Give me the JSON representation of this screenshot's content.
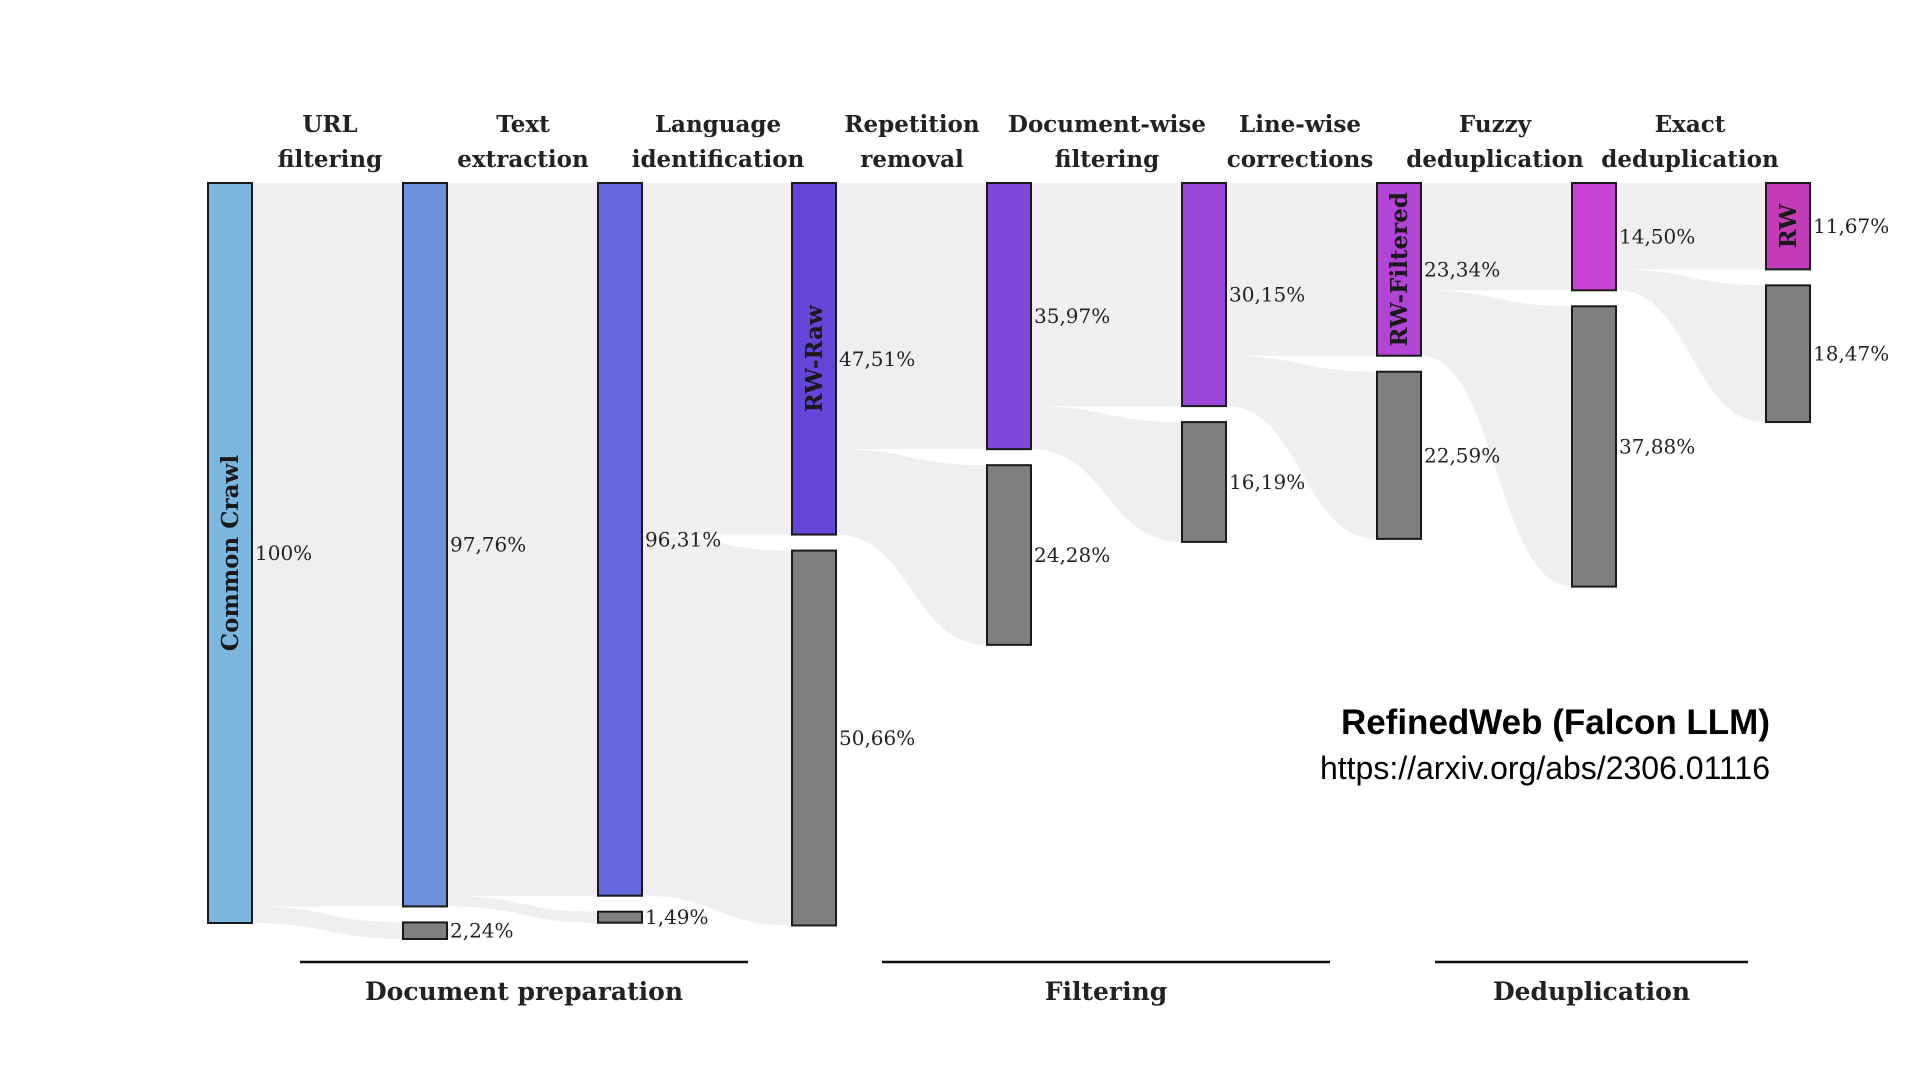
{
  "diagram": {
    "type": "sankey",
    "stages": [
      {
        "line1": "URL",
        "line2": "filtering"
      },
      {
        "line1": "Text",
        "line2": "extraction"
      },
      {
        "line1": "Language",
        "line2": "identification"
      },
      {
        "line1": "Repetition",
        "line2": "removal"
      },
      {
        "line1": "Document-wise",
        "line2": "filtering"
      },
      {
        "line1": "Line-wise",
        "line2": "corrections"
      },
      {
        "line1": "Fuzzy",
        "line2": "deduplication"
      },
      {
        "line1": "Exact",
        "line2": "deduplication"
      }
    ],
    "columns": [
      {
        "kept_pct": 100,
        "kept_label": "100%",
        "removed_pct": null,
        "removed_label": "",
        "name": "Common Crawl",
        "color": "#7ab6de"
      },
      {
        "kept_pct": 97.76,
        "kept_label": "97,76%",
        "removed_pct": 2.24,
        "removed_label": "2,24%",
        "name": "",
        "color": "#6e91dc"
      },
      {
        "kept_pct": 96.31,
        "kept_label": "96,31%",
        "removed_pct": 1.49,
        "removed_label": "1,49%",
        "name": "",
        "color": "#6567dc"
      },
      {
        "kept_pct": 47.51,
        "kept_label": "47,51%",
        "removed_pct": 50.66,
        "removed_label": "50,66%",
        "name": "RW-Raw",
        "color": "#6146d8"
      },
      {
        "kept_pct": 35.97,
        "kept_label": "35,97%",
        "removed_pct": 24.28,
        "removed_label": "24,28%",
        "name": "",
        "color": "#7f48da"
      },
      {
        "kept_pct": 30.15,
        "kept_label": "30,15%",
        "removed_pct": 16.19,
        "removed_label": "16,19%",
        "name": "",
        "color": "#9a45da"
      },
      {
        "kept_pct": 23.34,
        "kept_label": "23,34%",
        "removed_pct": 22.59,
        "removed_label": "22,59%",
        "name": "RW-Filtered",
        "color": "#b244d6"
      },
      {
        "kept_pct": 14.5,
        "kept_label": "14,50%",
        "removed_pct": 37.88,
        "removed_label": "37,88%",
        "name": "",
        "color": "#c843d4"
      },
      {
        "kept_pct": 11.67,
        "kept_label": "11,67%",
        "removed_pct": 18.47,
        "removed_label": "18,47%",
        "name": "RW",
        "color": "#c23cb8"
      }
    ],
    "removed_color": "#7f7f7f",
    "flow_color": "#f1eef2",
    "groups": [
      {
        "label": "Document preparation"
      },
      {
        "label": "Filtering"
      },
      {
        "label": "Deduplication"
      }
    ]
  },
  "caption": {
    "title": "RefinedWeb (Falcon LLM)",
    "url": "https://arxiv.org/abs/2306.01116"
  }
}
